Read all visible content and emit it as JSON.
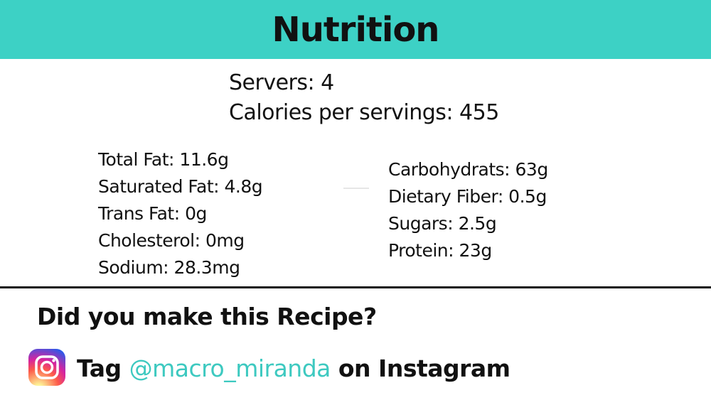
{
  "header": {
    "title": "Nutrition",
    "background": "#3dd1c5"
  },
  "summary": {
    "servers": "Servers: 4",
    "calories": "Calories per servings: 455"
  },
  "nutrients_left": [
    "Total Fat: 11.6g",
    "Saturated Fat: 4.8g",
    "Trans Fat: 0g",
    "Cholesterol: 0mg",
    "Sodium: 28.3mg"
  ],
  "nutrients_right": [
    "Carbohydrats: 63g",
    "Dietary Fiber: 0.5g",
    "Sugars: 2.5g",
    "Protein: 23g"
  ],
  "cta": {
    "question": "Did you make this Recipe?",
    "tag_prefix": "Tag",
    "handle": "@macro_miranda",
    "tag_suffix": "on Instagram",
    "handle_color": "#3dc9c0",
    "icon": "instagram-icon"
  }
}
